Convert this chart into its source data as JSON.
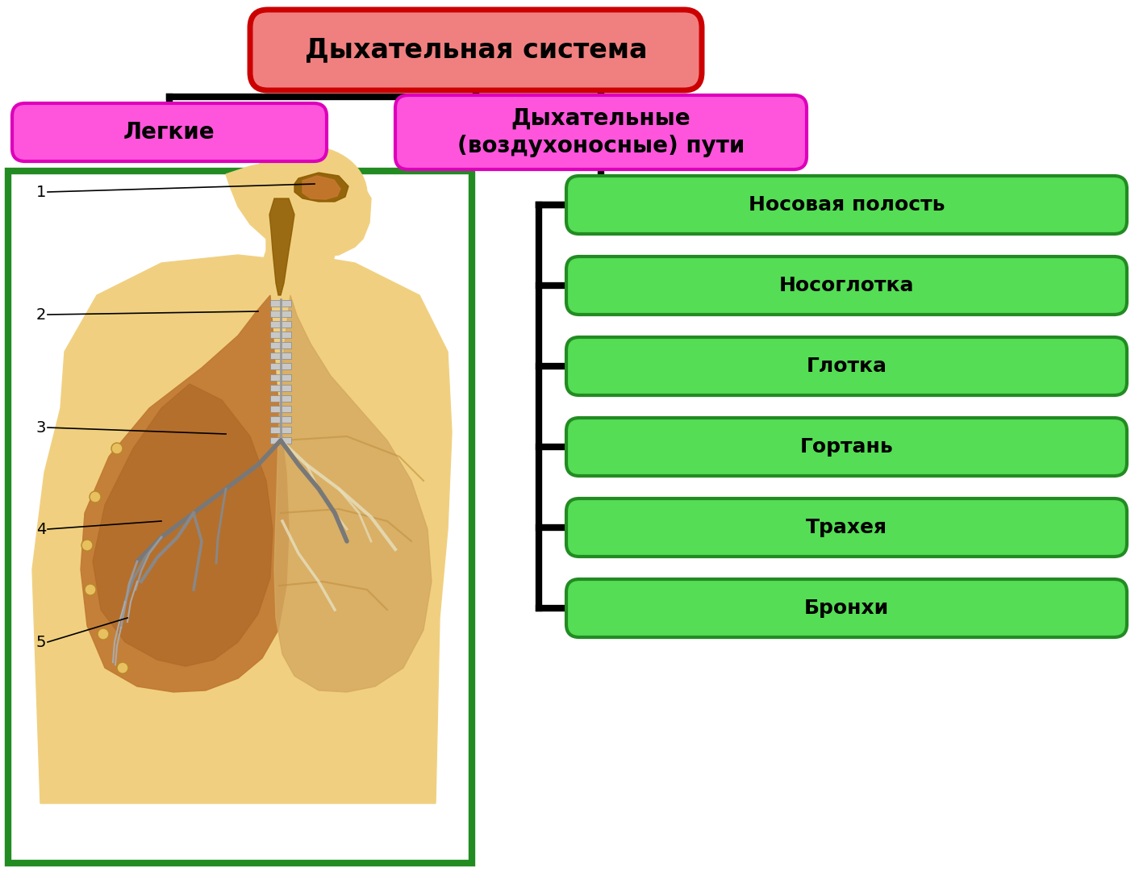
{
  "title": "Дыхательная система",
  "left_node": "Легкие",
  "right_node": "Дыхательные\n(воздухоносные) пути",
  "green_nodes": [
    "Носовая полость",
    "Носоглотка",
    "Глотка",
    "Гортань",
    "Трахея",
    "Бронхи"
  ],
  "title_bg": "#F08080",
  "title_border": "#CC0000",
  "title_fill": "#F08080",
  "pink_bg": "#FF55DD",
  "pink_border": "#DD00BB",
  "green_bg": "#55DD55",
  "green_border": "#228B22",
  "line_color": "#000000",
  "image_border_color": "#228B22",
  "bg_color": "#FFFFFF",
  "label_numbers": [
    "1",
    "2",
    "3",
    "4",
    "5"
  ],
  "body_color": "#F0D080",
  "lung_left_color": "#C8923A",
  "lung_right_color": "#D4A860",
  "nasal_color": "#8B5A00",
  "trachea_color": "#AAAAAA",
  "font_size_title": 24,
  "font_size_nodes": 20,
  "font_size_green": 18,
  "font_size_labels": 14
}
